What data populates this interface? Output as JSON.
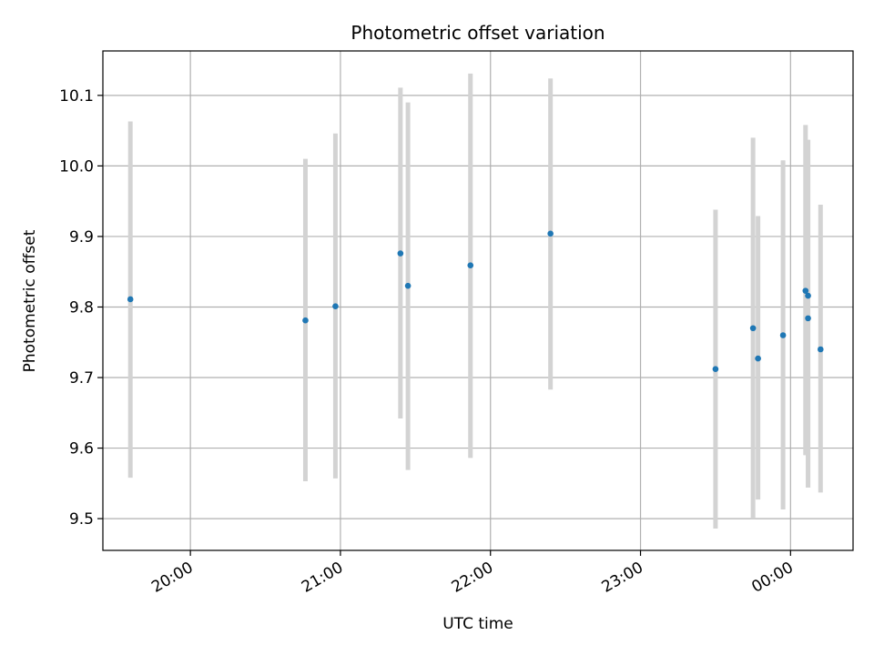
{
  "chart_data": {
    "type": "scatter",
    "title": "Photometric offset variation",
    "xlabel": "UTC time",
    "ylabel": "Photometric offset",
    "grid": true,
    "x_is_time": true,
    "xlim": [
      "19:25",
      "00:25"
    ],
    "ylim": [
      9.455,
      10.163
    ],
    "xticks": [
      "20:00",
      "21:00",
      "22:00",
      "23:00",
      "00:00"
    ],
    "yticks": [
      "9.5",
      "9.6",
      "9.7",
      "9.8",
      "9.9",
      "10.0",
      "10.1"
    ],
    "colors": {
      "point": "#1f77b4",
      "errorbar": "#d3d3d3",
      "grid": "#b0b0b0"
    },
    "series": [
      {
        "x": [
          "19:36",
          "20:46",
          "20:58",
          "21:24",
          "21:27",
          "21:52",
          "22:24",
          "23:30",
          "23:45",
          "23:47",
          "23:57",
          "00:06",
          "00:07",
          "00:07",
          "00:12"
        ],
        "y": [
          9.811,
          9.781,
          9.801,
          9.876,
          9.83,
          9.859,
          9.904,
          9.712,
          9.77,
          9.727,
          9.76,
          9.823,
          9.816,
          9.784,
          9.74
        ],
        "y_low": [
          9.558,
          9.553,
          9.557,
          9.642,
          9.569,
          9.586,
          9.683,
          9.486,
          9.5,
          9.527,
          9.513,
          9.59,
          9.544,
          9.544,
          9.537
        ],
        "y_high": [
          10.063,
          10.01,
          10.046,
          10.111,
          10.09,
          10.131,
          10.124,
          9.938,
          10.04,
          9.929,
          10.008,
          10.058,
          10.037,
          10.037,
          9.945
        ]
      }
    ]
  }
}
